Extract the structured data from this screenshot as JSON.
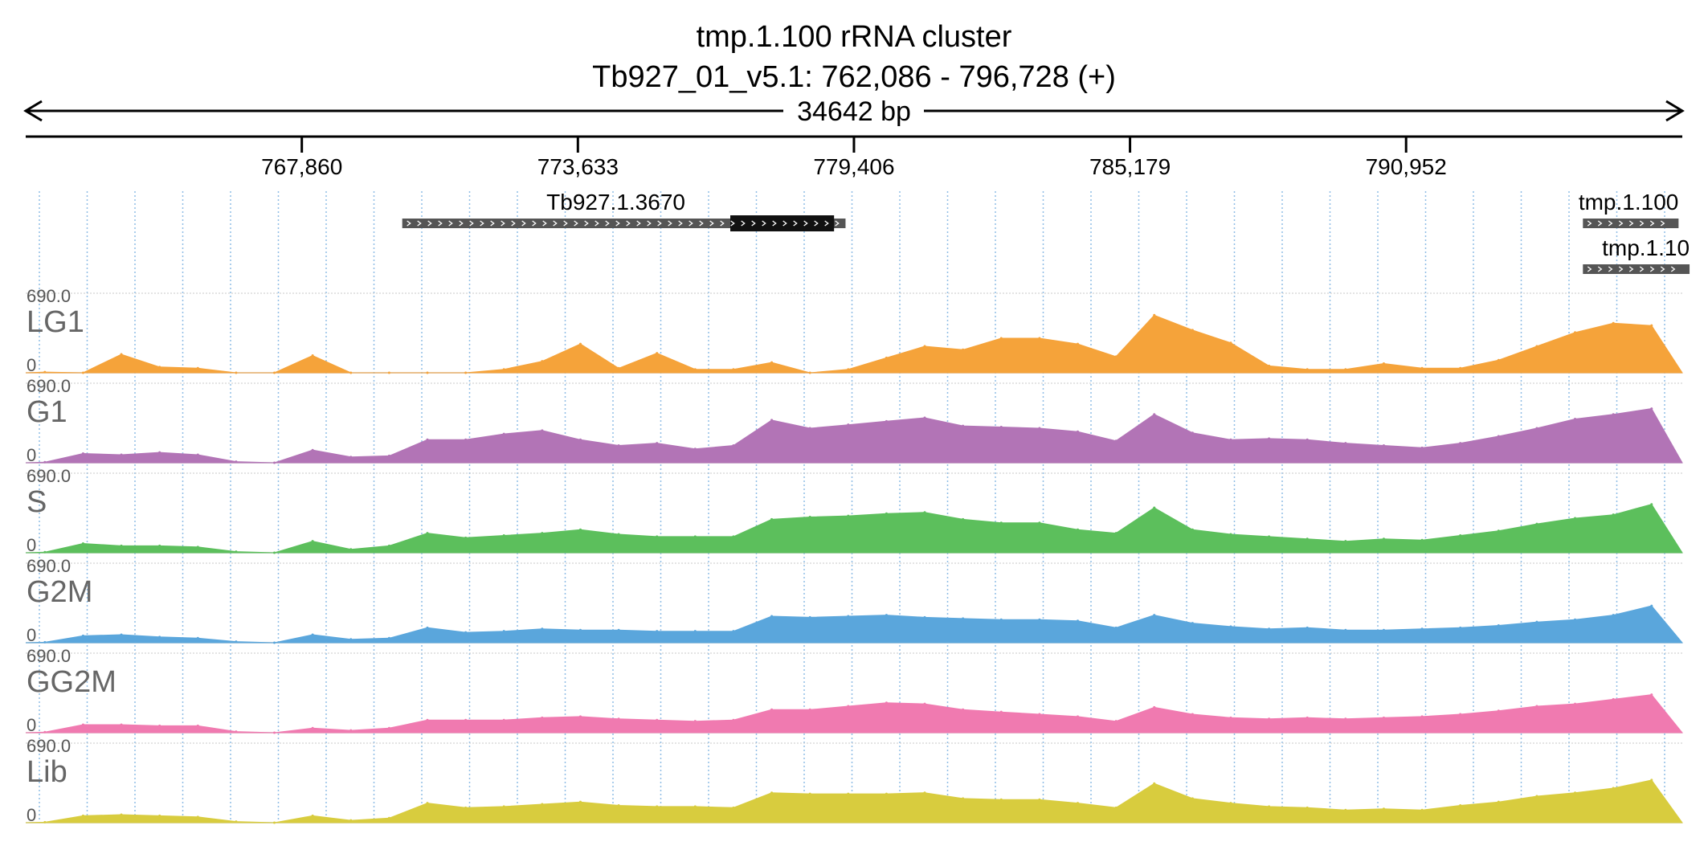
{
  "header": {
    "title": "tmp.1.100  rRNA cluster",
    "locus": "Tb927_01_v5.1: 762,086 - 796,728 (+)",
    "span_label": "34642 bp"
  },
  "chart_data": {
    "type": "area",
    "genome_track": "coverage",
    "x_range": [
      762086,
      796728
    ],
    "x_ticks": [
      767860,
      773633,
      779406,
      785179,
      790952
    ],
    "x_tick_labels": [
      "767,860",
      "773,633",
      "779,406",
      "785,179",
      "790,952"
    ],
    "features": [
      {
        "name": "Tb927.1.3670",
        "start": 769960,
        "end": 779230,
        "cds_start": 776820,
        "cds_end": 778990,
        "strand": "+"
      },
      {
        "name": "tmp.1.100",
        "start": 794650,
        "end": 796650,
        "strand": "+"
      },
      {
        "name": "tmp.1.10",
        "start": 794650,
        "end": 796880,
        "strand": "+"
      }
    ],
    "y_range": [
      0,
      690
    ],
    "y_max_label": "690.0",
    "y_min_label": "0",
    "bin_size_bp": 800,
    "x": [
      762486,
      763286,
      764086,
      764886,
      765686,
      766486,
      767286,
      768086,
      768886,
      769686,
      770486,
      771286,
      772086,
      772886,
      773686,
      774486,
      775286,
      776086,
      776886,
      777686,
      778486,
      779286,
      780086,
      780886,
      781686,
      782486,
      783286,
      784086,
      784886,
      785686,
      786486,
      787286,
      788086,
      788886,
      789686,
      790486,
      791286,
      792086,
      792886,
      793686,
      794486,
      795286,
      796086
    ],
    "series": [
      {
        "name": "LG1",
        "color": "#f5a33a",
        "values": [
          6,
          0,
          160,
          50,
          40,
          0,
          0,
          150,
          0,
          0,
          0,
          0,
          30,
          100,
          250,
          40,
          170,
          30,
          30,
          90,
          0,
          30,
          130,
          230,
          200,
          300,
          300,
          250,
          140,
          500,
          370,
          260,
          60,
          30,
          30,
          80,
          40,
          40,
          110,
          230,
          350,
          430,
          410
        ]
      },
      {
        "name": "G1",
        "color": "#b274b6",
        "values": [
          5,
          80,
          70,
          90,
          70,
          10,
          0,
          110,
          50,
          60,
          200,
          200,
          250,
          280,
          200,
          150,
          170,
          120,
          150,
          370,
          300,
          330,
          360,
          390,
          320,
          310,
          300,
          270,
          190,
          420,
          260,
          200,
          210,
          200,
          170,
          150,
          130,
          170,
          230,
          300,
          380,
          420,
          470
        ]
      },
      {
        "name": "S",
        "color": "#5cbf5c",
        "values": [
          5,
          80,
          60,
          60,
          50,
          10,
          0,
          100,
          30,
          60,
          170,
          130,
          150,
          170,
          200,
          160,
          140,
          140,
          140,
          290,
          310,
          320,
          340,
          350,
          290,
          260,
          260,
          200,
          170,
          390,
          200,
          160,
          140,
          120,
          100,
          120,
          110,
          150,
          190,
          250,
          300,
          330,
          420
        ]
      },
      {
        "name": "G2M",
        "color": "#5aa6dc",
        "values": [
          4,
          60,
          70,
          50,
          40,
          10,
          0,
          70,
          30,
          40,
          130,
          90,
          100,
          120,
          110,
          110,
          100,
          100,
          100,
          230,
          220,
          230,
          240,
          220,
          210,
          200,
          200,
          190,
          130,
          240,
          170,
          140,
          120,
          130,
          110,
          110,
          120,
          130,
          150,
          180,
          200,
          240,
          320
        ]
      },
      {
        "name": "GG2M",
        "color": "#f07ab0",
        "values": [
          5,
          70,
          70,
          60,
          60,
          10,
          0,
          40,
          20,
          40,
          110,
          110,
          110,
          130,
          140,
          120,
          110,
          100,
          110,
          200,
          200,
          230,
          260,
          250,
          200,
          180,
          160,
          140,
          100,
          220,
          160,
          130,
          120,
          130,
          120,
          130,
          140,
          160,
          190,
          230,
          250,
          290,
          330
        ]
      },
      {
        "name": "Lib",
        "color": "#d8cc3e",
        "values": [
          4,
          60,
          70,
          60,
          50,
          10,
          0,
          60,
          20,
          40,
          170,
          130,
          140,
          160,
          180,
          150,
          140,
          140,
          130,
          260,
          250,
          250,
          250,
          260,
          210,
          200,
          200,
          170,
          130,
          340,
          210,
          170,
          140,
          130,
          110,
          120,
          110,
          150,
          180,
          230,
          260,
          300,
          370
        ]
      }
    ]
  }
}
